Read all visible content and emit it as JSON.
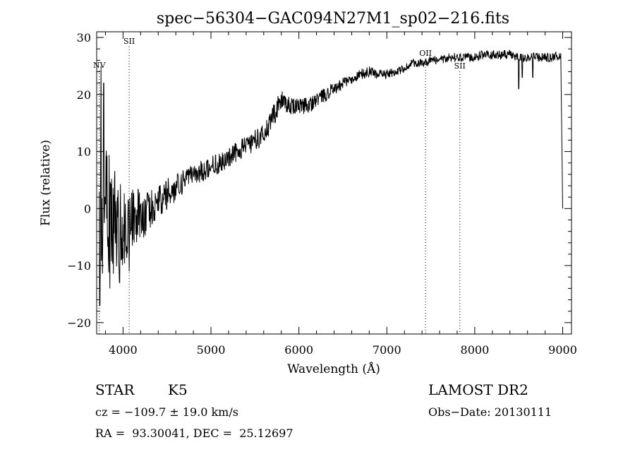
{
  "chart_data": {
    "type": "line",
    "title": "spec−56304−GAC094N27M1_sp02−216.fits",
    "xlabel": "Wavelength (Å)",
    "ylabel": "Flux (relative)",
    "xlim": [
      3700,
      9100
    ],
    "ylim": [
      -22,
      31
    ],
    "xticks": [
      4000,
      5000,
      6000,
      7000,
      8000,
      9000
    ],
    "xtick_labels": [
      "4000",
      "5000",
      "6000",
      "7000",
      "8000",
      "9000"
    ],
    "yticks": [
      -20,
      -10,
      0,
      10,
      20,
      30
    ],
    "ytick_labels": [
      "−20",
      "−10",
      "0",
      "10",
      "20",
      "30"
    ],
    "grid": false,
    "continuum": {
      "x": [
        3730,
        3800,
        3900,
        4000,
        4100,
        4200,
        4300,
        4400,
        4500,
        4600,
        4700,
        4800,
        4900,
        5000,
        5100,
        5200,
        5300,
        5400,
        5500,
        5600,
        5650,
        5700,
        5750,
        5800,
        5850,
        5900,
        6000,
        6100,
        6200,
        6300,
        6400,
        6500,
        6600,
        6700,
        6800,
        6900,
        7000,
        7100,
        7200,
        7300,
        7400,
        7500,
        7600,
        7700,
        7800,
        7900,
        8000,
        8100,
        8200,
        8300,
        8400,
        8500,
        8600,
        8700,
        8800,
        8900,
        8980,
        9000
      ],
      "y": [
        0,
        0,
        -2,
        -3,
        -2,
        -1,
        0,
        1,
        2.5,
        3.5,
        5,
        6,
        6.5,
        7.5,
        8,
        9,
        10,
        11,
        12,
        13,
        14,
        16,
        17.5,
        19,
        18.5,
        18,
        18,
        18,
        19,
        20,
        21,
        22,
        22.5,
        23.5,
        24,
        23.5,
        23.5,
        24,
        24.5,
        25.5,
        25.5,
        26,
        26,
        26.5,
        26.5,
        26.5,
        26.5,
        27,
        27,
        27,
        27,
        26.5,
        26.5,
        26.5,
        26.5,
        26.5,
        27,
        0
      ],
      "noise_sigma": [
        8,
        7,
        6,
        4.5,
        3.5,
        3,
        2.5,
        2,
        1.8,
        1.5,
        1.3,
        1.2,
        1.2,
        1.1,
        1.1,
        1.1,
        1.1,
        1.1,
        1.2,
        1.2,
        1.2,
        1.2,
        1.2,
        1.1,
        1.0,
        0.9,
        0.9,
        0.9,
        0.8,
        0.8,
        0.7,
        0.6,
        0.6,
        0.6,
        0.6,
        0.5,
        0.5,
        0.5,
        0.5,
        0.5,
        0.5,
        0.5,
        0.5,
        0.5,
        0.5,
        0.5,
        0.5,
        0.5,
        0.5,
        0.5,
        0.5,
        0.5,
        0.5,
        0.5,
        0.5,
        0.5,
        0.5,
        0
      ],
      "features": [
        {
          "x": 3735,
          "y": -17
        },
        {
          "x": 3750,
          "y": 25
        },
        {
          "x": 3780,
          "y": 22
        },
        {
          "x": 3850,
          "y": -14
        },
        {
          "x": 3960,
          "y": -13
        },
        {
          "x": 4070,
          "y": -11
        },
        {
          "x": 8500,
          "y": 21
        },
        {
          "x": 8540,
          "y": 23
        },
        {
          "x": 8660,
          "y": 23
        }
      ]
    },
    "line_markers": [
      {
        "label": "NV",
        "x": 3730
      },
      {
        "label": "SII",
        "x": 4070
      },
      {
        "label": "OII",
        "x": 7440
      },
      {
        "label": "SII",
        "x": 7830
      }
    ]
  },
  "info": {
    "class_label": "STAR",
    "subclass_label": "K5",
    "cz_text": "cz = −109.7 ± 19.0 km/s",
    "radec_text": "RA =  93.30041, DEC =  25.12697",
    "survey": "LAMOST DR2",
    "obs_date": "Obs−Date: 20130111"
  }
}
